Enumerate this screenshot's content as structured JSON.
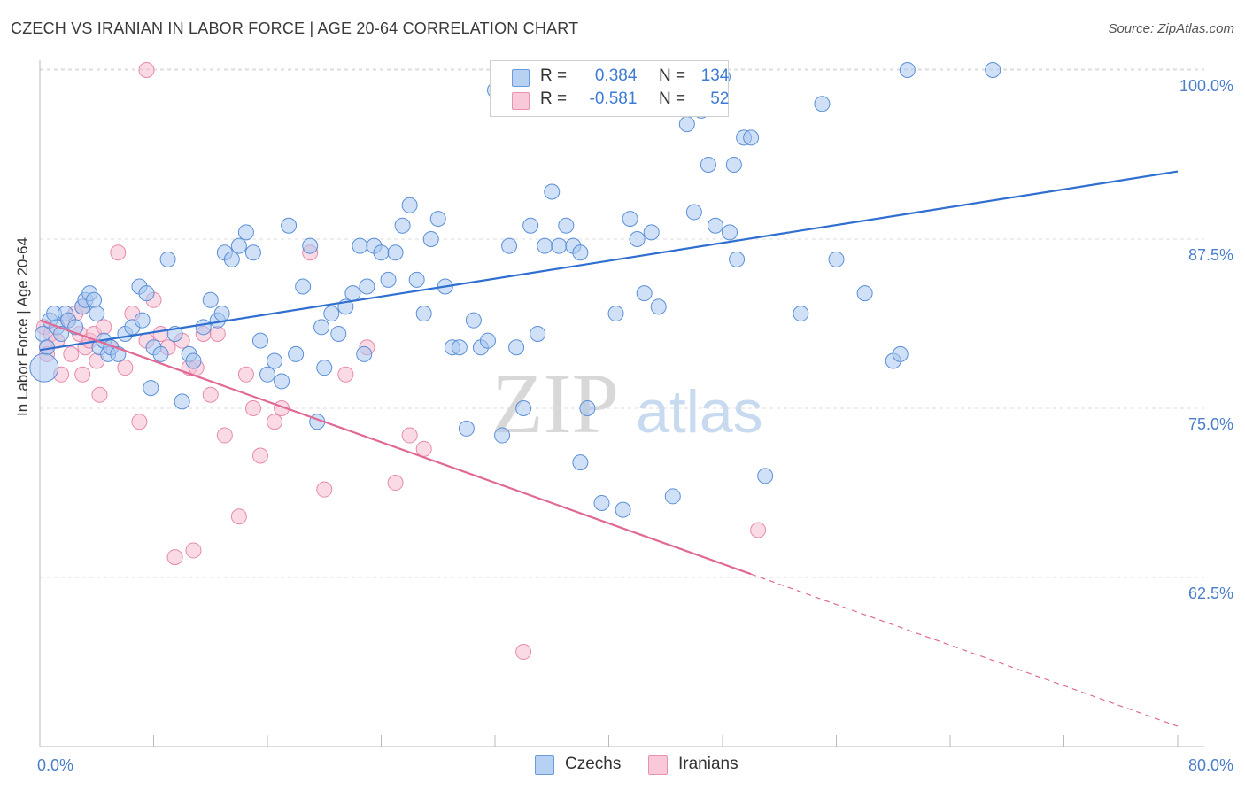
{
  "title": "CZECH VS IRANIAN IN LABOR FORCE | AGE 20-64 CORRELATION CHART",
  "source": "Source: ZipAtlas.com",
  "watermark": {
    "zip": "ZIP",
    "atlas": "atlas"
  },
  "legend": {
    "czechs": {
      "r_label": "R =",
      "r_value": "0.384",
      "n_label": "N =",
      "n_value": "134"
    },
    "iranians": {
      "r_label": "R =",
      "r_value": "-0.581",
      "n_label": "N =",
      "n_value": "52"
    }
  },
  "bottom_legend": {
    "czechs": "Czechs",
    "iranians": "Iranians"
  },
  "colors": {
    "czechs_fill": "#a9c8f0",
    "czechs_stroke": "#5b8fd6",
    "czechs_line": "#2f6fd0",
    "iranians_fill": "#f6bcd0",
    "iranians_stroke": "#e78aab",
    "iranians_line": "#e06a95"
  },
  "chart_data": {
    "type": "scatter",
    "title": "CZECH VS IRANIAN IN LABOR FORCE | AGE 20-64 CORRELATION CHART",
    "xlabel": "",
    "ylabel": "In Labor Force | Age 20-64",
    "xlim": [
      0,
      80
    ],
    "ylim": [
      50,
      100
    ],
    "x_tick_labels": [
      "0.0%",
      "80.0%"
    ],
    "y_ticks": [
      62.5,
      75.0,
      87.5,
      100.0
    ],
    "y_tick_labels": [
      "62.5%",
      "75.0%",
      "87.5%",
      "100.0%"
    ],
    "grid": true,
    "legend_position": "top-center",
    "series": [
      {
        "name": "Czechs",
        "r": 0.384,
        "n": 134,
        "trend": {
          "x": [
            0,
            80
          ],
          "y": [
            79.3,
            92.5
          ]
        },
        "points": [
          [
            0.2,
            80.5
          ],
          [
            0.5,
            79.5
          ],
          [
            0.7,
            81.5
          ],
          [
            1.0,
            82.0
          ],
          [
            1.2,
            81.0
          ],
          [
            1.5,
            80.5
          ],
          [
            1.8,
            82.0
          ],
          [
            2.0,
            81.5
          ],
          [
            2.5,
            81.0
          ],
          [
            3.0,
            82.5
          ],
          [
            3.2,
            83.0
          ],
          [
            3.5,
            83.5
          ],
          [
            3.8,
            83.0
          ],
          [
            4.0,
            82.0
          ],
          [
            4.2,
            79.5
          ],
          [
            4.5,
            80.0
          ],
          [
            4.8,
            79.0
          ],
          [
            5.0,
            79.5
          ],
          [
            5.5,
            79.0
          ],
          [
            6.0,
            80.5
          ],
          [
            6.5,
            81.0
          ],
          [
            7.0,
            84.0
          ],
          [
            7.5,
            83.5
          ],
          [
            7.2,
            81.5
          ],
          [
            7.8,
            76.5
          ],
          [
            8.0,
            79.5
          ],
          [
            8.5,
            79.0
          ],
          [
            9.0,
            86.0
          ],
          [
            9.5,
            80.5
          ],
          [
            10.0,
            75.5
          ],
          [
            10.5,
            79.0
          ],
          [
            10.8,
            78.5
          ],
          [
            11.5,
            81.0
          ],
          [
            12.0,
            83.0
          ],
          [
            12.5,
            81.5
          ],
          [
            12.8,
            82.0
          ],
          [
            13.0,
            86.5
          ],
          [
            13.5,
            86.0
          ],
          [
            14.0,
            87.0
          ],
          [
            14.5,
            88.0
          ],
          [
            15.0,
            86.5
          ],
          [
            15.5,
            80.0
          ],
          [
            16.0,
            77.5
          ],
          [
            16.5,
            78.5
          ],
          [
            17.0,
            77.0
          ],
          [
            17.5,
            88.5
          ],
          [
            18.0,
            79.0
          ],
          [
            18.5,
            84.0
          ],
          [
            19.0,
            87.0
          ],
          [
            19.5,
            74.0
          ],
          [
            19.8,
            81.0
          ],
          [
            20.0,
            78.0
          ],
          [
            20.5,
            82.0
          ],
          [
            21.0,
            80.5
          ],
          [
            21.5,
            82.5
          ],
          [
            22.0,
            83.5
          ],
          [
            22.5,
            87.0
          ],
          [
            22.8,
            79.0
          ],
          [
            23.0,
            84.0
          ],
          [
            23.5,
            87.0
          ],
          [
            24.0,
            86.5
          ],
          [
            24.5,
            84.5
          ],
          [
            25.0,
            86.5
          ],
          [
            25.5,
            88.5
          ],
          [
            26.0,
            90.0
          ],
          [
            26.5,
            84.5
          ],
          [
            27.0,
            82.0
          ],
          [
            27.5,
            87.5
          ],
          [
            28.0,
            89.0
          ],
          [
            28.5,
            84.0
          ],
          [
            29.0,
            79.5
          ],
          [
            29.5,
            79.5
          ],
          [
            30.0,
            73.5
          ],
          [
            30.5,
            81.5
          ],
          [
            31.0,
            79.5
          ],
          [
            31.5,
            80.0
          ],
          [
            32.0,
            98.5
          ],
          [
            32.5,
            73.0
          ],
          [
            33.0,
            87.0
          ],
          [
            33.5,
            79.5
          ],
          [
            34.0,
            75.0
          ],
          [
            34.5,
            88.5
          ],
          [
            35.0,
            80.5
          ],
          [
            35.5,
            87.0
          ],
          [
            36.0,
            91.0
          ],
          [
            36.5,
            87.0
          ],
          [
            37.0,
            88.5
          ],
          [
            37.5,
            87.0
          ],
          [
            38.0,
            86.5
          ],
          [
            38.5,
            75.0
          ],
          [
            38.0,
            71.0
          ],
          [
            39.0,
            99.5
          ],
          [
            39.5,
            68.0
          ],
          [
            40.5,
            82.0
          ],
          [
            41.0,
            67.5
          ],
          [
            41.5,
            89.0
          ],
          [
            42.5,
            83.5
          ],
          [
            42.0,
            87.5
          ],
          [
            43.0,
            88.0
          ],
          [
            43.5,
            82.5
          ],
          [
            44.5,
            68.5
          ],
          [
            45.0,
            99.5
          ],
          [
            45.5,
            96.0
          ],
          [
            46.0,
            89.5
          ],
          [
            46.5,
            97.0
          ],
          [
            47.0,
            93.0
          ],
          [
            47.5,
            88.5
          ],
          [
            48.0,
            99.5
          ],
          [
            48.5,
            88.0
          ],
          [
            48.8,
            93.0
          ],
          [
            49.0,
            86.0
          ],
          [
            49.5,
            95.0
          ],
          [
            50.0,
            95.0
          ],
          [
            51.0,
            70.0
          ],
          [
            53.5,
            82.0
          ],
          [
            55.0,
            97.5
          ],
          [
            56.0,
            86.0
          ],
          [
            58.0,
            83.5
          ],
          [
            60.0,
            78.5
          ],
          [
            60.5,
            79.0
          ],
          [
            61.0,
            100.0
          ],
          [
            67.0,
            100.0
          ],
          [
            0.3,
            78.0
          ]
        ]
      },
      {
        "name": "Iranians",
        "r": -0.581,
        "n": 52,
        "trend": {
          "x": [
            0,
            80
          ],
          "y": [
            81.5,
            51.5
          ]
        },
        "trend_solid_until_x": 50,
        "points": [
          [
            0.3,
            81.0
          ],
          [
            0.5,
            79.5
          ],
          [
            0.8,
            80.5
          ],
          [
            1.2,
            80.0
          ],
          [
            1.5,
            77.5
          ],
          [
            2.0,
            81.5
          ],
          [
            2.2,
            79.0
          ],
          [
            2.5,
            82.0
          ],
          [
            2.8,
            80.5
          ],
          [
            3.0,
            77.5
          ],
          [
            3.2,
            79.5
          ],
          [
            3.5,
            80.0
          ],
          [
            3.8,
            80.5
          ],
          [
            4.0,
            78.5
          ],
          [
            4.2,
            76.0
          ],
          [
            4.5,
            81.0
          ],
          [
            5.0,
            79.5
          ],
          [
            5.5,
            86.5
          ],
          [
            6.0,
            78.0
          ],
          [
            6.5,
            82.0
          ],
          [
            7.0,
            74.0
          ],
          [
            7.5,
            80.0
          ],
          [
            8.0,
            83.0
          ],
          [
            8.5,
            80.5
          ],
          [
            9.0,
            79.5
          ],
          [
            9.5,
            64.0
          ],
          [
            10.0,
            80.0
          ],
          [
            10.5,
            78.0
          ],
          [
            10.8,
            64.5
          ],
          [
            11.0,
            78.0
          ],
          [
            11.5,
            80.5
          ],
          [
            12.0,
            76.0
          ],
          [
            12.5,
            80.5
          ],
          [
            13.0,
            73.0
          ],
          [
            14.0,
            67.0
          ],
          [
            14.5,
            77.5
          ],
          [
            15.0,
            75.0
          ],
          [
            15.5,
            71.5
          ],
          [
            16.5,
            74.0
          ],
          [
            17.0,
            75.0
          ],
          [
            19.0,
            86.5
          ],
          [
            20.0,
            69.0
          ],
          [
            21.5,
            77.5
          ],
          [
            23.0,
            79.5
          ],
          [
            25.0,
            69.5
          ],
          [
            26.0,
            73.0
          ],
          [
            27.0,
            72.0
          ],
          [
            34.0,
            57.0
          ],
          [
            50.5,
            66.0
          ],
          [
            7.5,
            100.0
          ],
          [
            0.5,
            79.0
          ],
          [
            3.0,
            82.5
          ]
        ]
      }
    ]
  }
}
